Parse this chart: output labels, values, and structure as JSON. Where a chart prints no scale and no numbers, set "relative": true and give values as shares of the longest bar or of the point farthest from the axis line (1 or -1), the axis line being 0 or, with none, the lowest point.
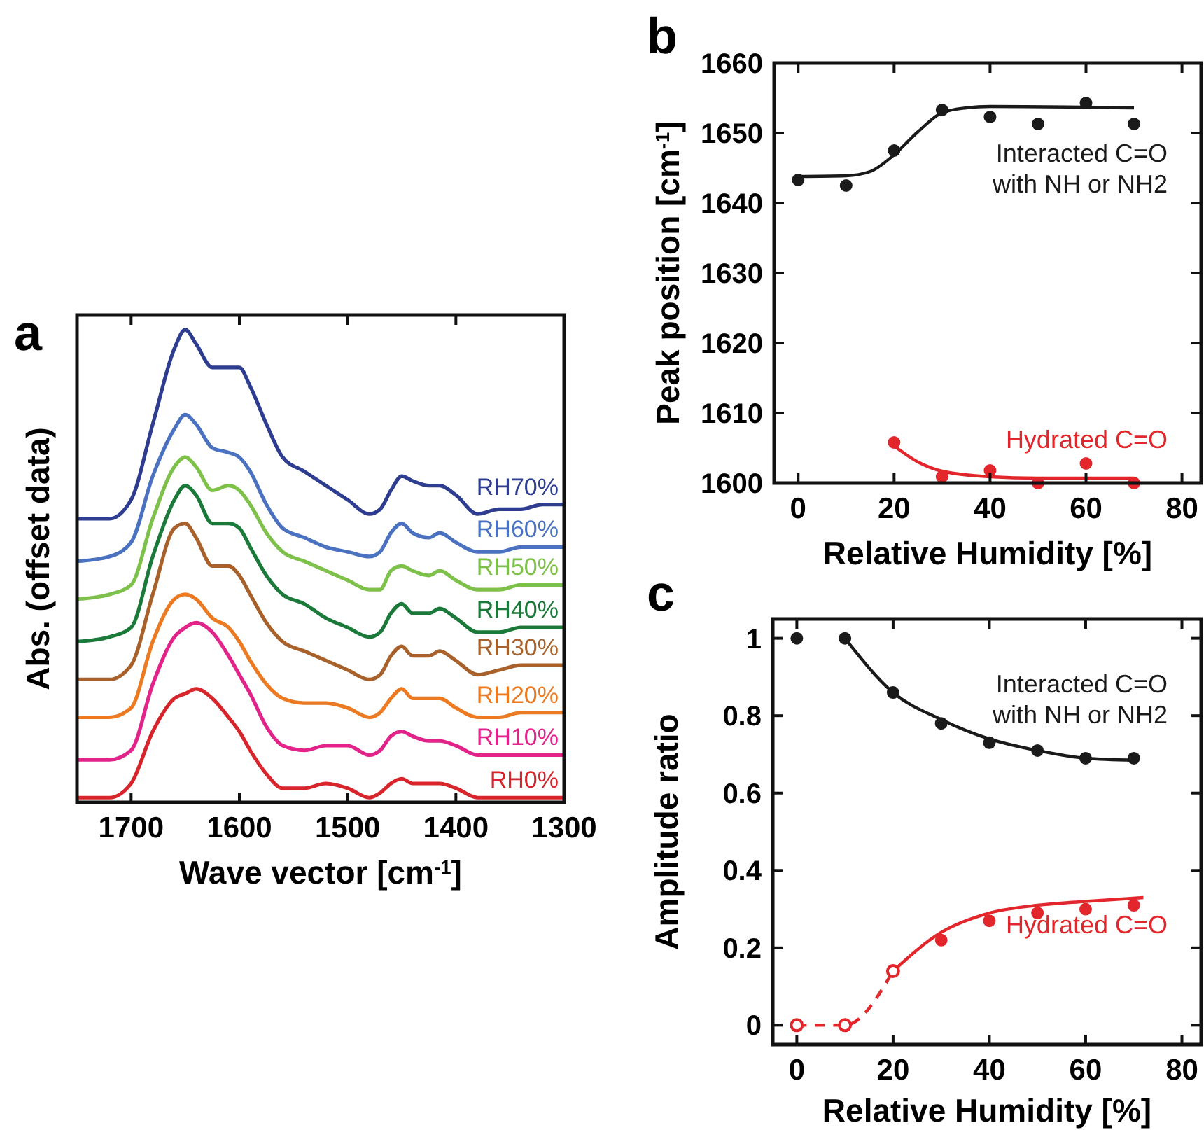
{
  "chart_data": [
    {
      "type": "line",
      "title": "a",
      "xlabel": "Wave vector [cm$^{-1}$]",
      "ylabel": "Abs. (offset data)",
      "relative": true,
      "xlim": [
        1750,
        1300
      ],
      "xticks": [
        1700,
        1600,
        1500,
        1400,
        1300
      ],
      "x": [
        1750,
        1720,
        1700,
        1680,
        1660,
        1650,
        1640,
        1625,
        1610,
        1600,
        1590,
        1575,
        1560,
        1540,
        1520,
        1500,
        1480,
        1470,
        1460,
        1450,
        1440,
        1425,
        1415,
        1400,
        1380,
        1360,
        1340,
        1320,
        1300
      ],
      "series": [
        {
          "name": "RH70%",
          "color": "#2e3d8f",
          "values": [
            0.6,
            0.6,
            0.64,
            0.8,
            0.96,
            1,
            0.97,
            0.92,
            0.92,
            0.92,
            0.88,
            0.8,
            0.73,
            0.7,
            0.67,
            0.64,
            0.61,
            0.62,
            0.66,
            0.69,
            0.68,
            0.67,
            0.67,
            0.65,
            0.61,
            0.62,
            0.62,
            0.63,
            0.63
          ]
        },
        {
          "name": "RH60%",
          "color": "#4a72c0",
          "values": [
            0.51,
            0.52,
            0.55,
            0.69,
            0.79,
            0.82,
            0.8,
            0.75,
            0.74,
            0.73,
            0.7,
            0.63,
            0.58,
            0.56,
            0.54,
            0.53,
            0.52,
            0.53,
            0.57,
            0.59,
            0.57,
            0.56,
            0.57,
            0.55,
            0.53,
            0.53,
            0.54,
            0.54,
            0.54
          ]
        },
        {
          "name": "RH50%",
          "color": "#7dc14a",
          "values": [
            0.43,
            0.44,
            0.46,
            0.6,
            0.71,
            0.73,
            0.71,
            0.66,
            0.67,
            0.66,
            0.63,
            0.57,
            0.53,
            0.51,
            0.49,
            0.47,
            0.45,
            0.45,
            0.49,
            0.5,
            0.49,
            0.48,
            0.49,
            0.47,
            0.45,
            0.45,
            0.46,
            0.46,
            0.46
          ]
        },
        {
          "name": "RH40%",
          "color": "#1b7a3a",
          "values": [
            0.34,
            0.35,
            0.37,
            0.52,
            0.64,
            0.67,
            0.65,
            0.59,
            0.59,
            0.58,
            0.54,
            0.48,
            0.44,
            0.42,
            0.39,
            0.37,
            0.35,
            0.36,
            0.4,
            0.42,
            0.4,
            0.4,
            0.41,
            0.39,
            0.36,
            0.36,
            0.37,
            0.37,
            0.37
          ]
        },
        {
          "name": "RH30%",
          "color": "#a8612a",
          "values": [
            0.26,
            0.26,
            0.29,
            0.44,
            0.58,
            0.59,
            0.56,
            0.5,
            0.5,
            0.48,
            0.44,
            0.38,
            0.34,
            0.32,
            0.3,
            0.28,
            0.26,
            0.27,
            0.31,
            0.33,
            0.31,
            0.31,
            0.32,
            0.3,
            0.27,
            0.28,
            0.29,
            0.29,
            0.29
          ]
        },
        {
          "name": "RH20%",
          "color": "#ec7a22",
          "values": [
            0.18,
            0.18,
            0.2,
            0.34,
            0.43,
            0.44,
            0.43,
            0.39,
            0.37,
            0.34,
            0.3,
            0.25,
            0.22,
            0.21,
            0.21,
            0.2,
            0.18,
            0.19,
            0.22,
            0.24,
            0.22,
            0.22,
            0.22,
            0.2,
            0.18,
            0.18,
            0.19,
            0.19,
            0.19
          ]
        },
        {
          "name": "RH10%",
          "color": "#e2238a",
          "values": [
            0.09,
            0.09,
            0.11,
            0.25,
            0.35,
            0.37,
            0.38,
            0.36,
            0.31,
            0.27,
            0.23,
            0.16,
            0.12,
            0.11,
            0.12,
            0.12,
            0.1,
            0.11,
            0.14,
            0.15,
            0.14,
            0.13,
            0.13,
            0.12,
            0.1,
            0.1,
            0.1,
            0.1,
            0.1
          ]
        },
        {
          "name": "RH0%",
          "color": "#d8242b",
          "values": [
            0.01,
            0.01,
            0.04,
            0.15,
            0.22,
            0.23,
            0.24,
            0.22,
            0.18,
            0.15,
            0.11,
            0.06,
            0.03,
            0.03,
            0.04,
            0.03,
            0.01,
            0.02,
            0.04,
            0.05,
            0.04,
            0.04,
            0.04,
            0.03,
            0.01,
            0.01,
            0.01,
            0.01,
            0.01
          ]
        }
      ]
    },
    {
      "type": "scatter",
      "title": "b",
      "legend": "right",
      "xlabel": "Relative Humidity [%]",
      "ylabel": "Peak position [cm$^{-1}$]",
      "xlim": [
        -5,
        84
      ],
      "ylim": [
        1600,
        1660
      ],
      "xticks": [
        0,
        20,
        40,
        60,
        80
      ],
      "yticks": [
        1600,
        1610,
        1620,
        1630,
        1640,
        1650,
        1660
      ],
      "series": [
        {
          "name": "Interacted C=O with NH or NH2",
          "color": "#1a1a1a",
          "marker": "circle",
          "x": [
            0,
            10,
            20,
            30,
            40,
            50,
            60,
            70
          ],
          "values": [
            1643.3,
            1642.5,
            1647.5,
            1653.3,
            1652.3,
            1651.3,
            1654.3,
            1651.3
          ]
        },
        {
          "type": "line",
          "color": "#1a1a1a",
          "x": [
            0,
            10,
            15,
            20,
            25,
            30,
            35,
            40,
            70
          ],
          "values": [
            1643.8,
            1643.9,
            1644.5,
            1646.9,
            1650.2,
            1652.9,
            1653.6,
            1653.8,
            1653.6
          ]
        },
        {
          "name": "Hydrated C=O",
          "color": "#e2262b",
          "marker": "circle",
          "x": [
            20,
            30,
            40,
            50,
            60,
            70
          ],
          "values": [
            1605.8,
            1600.9,
            1601.8,
            1600,
            1602.8,
            1600
          ]
        },
        {
          "type": "line",
          "color": "#e2262b",
          "x": [
            20,
            25,
            30,
            40,
            50,
            70
          ],
          "values": [
            1605.3,
            1603,
            1601.7,
            1600.9,
            1600.7,
            1600.7
          ]
        }
      ]
    },
    {
      "type": "scatter",
      "title": "c",
      "legend": "right",
      "xlabel": "Relative Humidity [%]",
      "ylabel": "Amplitude ratio",
      "xlim": [
        -5,
        84
      ],
      "ylim": [
        -0.05,
        1.05
      ],
      "xticks": [
        0,
        20,
        40,
        60,
        80
      ],
      "yticks": [
        0,
        0.2,
        0.4,
        0.6,
        0.8,
        1
      ],
      "series": [
        {
          "name": "Interacted C=O with NH or NH2",
          "color": "#1a1a1a",
          "marker": "circle",
          "x": [
            0,
            10,
            20,
            30,
            40,
            50,
            60,
            70
          ],
          "values": [
            1,
            1,
            0.86,
            0.78,
            0.73,
            0.71,
            0.69,
            0.69
          ]
        },
        {
          "type": "line",
          "color": "#1a1a1a",
          "x": [
            10,
            20,
            30,
            40,
            50,
            60,
            70
          ],
          "values": [
            1,
            0.86,
            0.79,
            0.74,
            0.71,
            0.69,
            0.685
          ]
        },
        {
          "name": "Hydrated C=O",
          "color": "#e2262b",
          "marker": "circle",
          "x": [
            20,
            30,
            40,
            50,
            60,
            70
          ],
          "values": [
            0.14,
            0.22,
            0.27,
            0.29,
            0.3,
            0.31
          ]
        },
        {
          "type": "line",
          "color": "#e2262b",
          "x": [
            20,
            30,
            40,
            50,
            60,
            72
          ],
          "values": [
            0.14,
            0.24,
            0.29,
            0.31,
            0.32,
            0.33
          ]
        },
        {
          "type": "line",
          "color": "#e2262b",
          "line_style": "dashed",
          "marker": "circle",
          "x": [
            0,
            10,
            20
          ],
          "values": [
            0,
            0,
            0.14
          ]
        }
      ]
    }
  ]
}
